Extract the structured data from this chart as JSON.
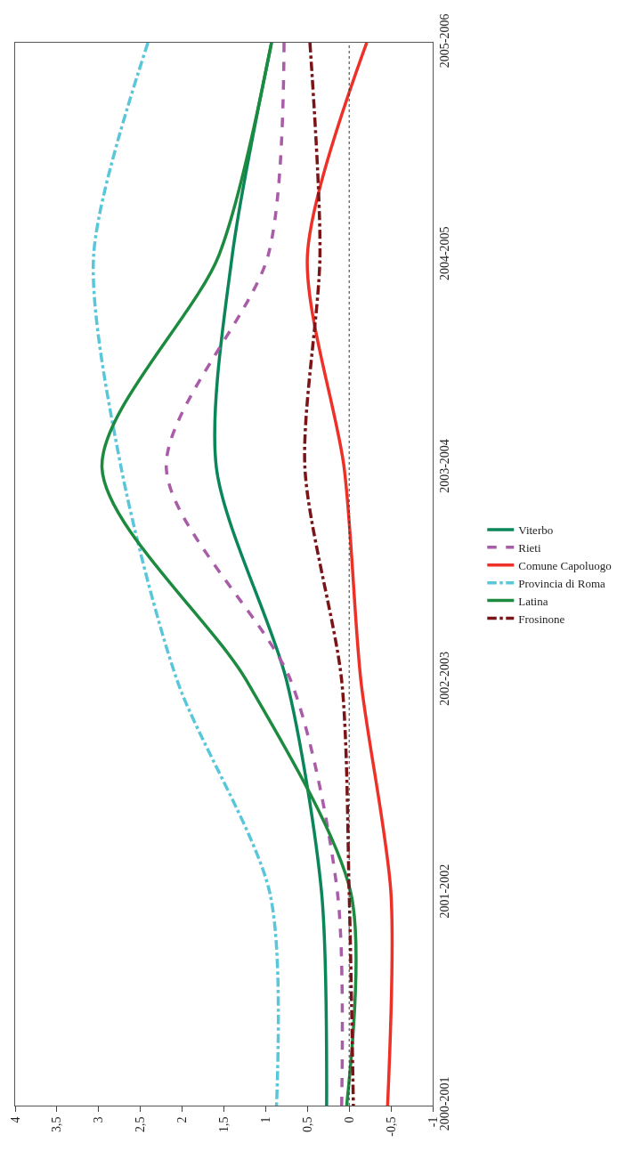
{
  "chart_data": {
    "type": "line",
    "orientation": "horizontal",
    "categories": [
      "2005-2006",
      "2004-2005",
      "2003-2004",
      "2002-2003",
      "2001-2002",
      "2000-2001"
    ],
    "series": [
      {
        "name": "Viterbo",
        "color": "#0b8659",
        "line_style": "solid",
        "values": [
          0.93,
          1.4,
          1.59,
          0.75,
          0.33,
          0.27
        ]
      },
      {
        "name": "Rieti",
        "color": "#a95ca8",
        "line_style": "dashed",
        "values": [
          0.78,
          0.97,
          2.19,
          0.7,
          0.14,
          0.09
        ]
      },
      {
        "name": "Comune Capoluogo",
        "color": "#ee3128",
        "line_style": "solid",
        "values": [
          -0.21,
          0.5,
          0.06,
          -0.14,
          -0.5,
          -0.46
        ]
      },
      {
        "name": "Provincia di Roma",
        "color": "#59c7da",
        "line_style": "dashdot",
        "values": [
          2.41,
          3.06,
          2.73,
          2.06,
          0.95,
          0.87
        ]
      },
      {
        "name": "Latina",
        "color": "#1d8b3f",
        "line_style": "solid",
        "values": [
          0.93,
          1.56,
          2.96,
          1.23,
          -0.02,
          0.03
        ]
      },
      {
        "name": "Frosinone",
        "color": "#7b1416",
        "line_style": "dashdot",
        "values": [
          0.47,
          0.35,
          0.53,
          0.09,
          0.0,
          -0.05
        ]
      }
    ],
    "xlim": [
      4,
      -1
    ],
    "xticks": [
      {
        "value": 4,
        "label": "4"
      },
      {
        "value": 3.5,
        "label": "3,5"
      },
      {
        "value": 3,
        "label": "3"
      },
      {
        "value": 2.5,
        "label": "2,5"
      },
      {
        "value": 2,
        "label": "2"
      },
      {
        "value": 1.5,
        "label": "1,5"
      },
      {
        "value": 1,
        "label": "1"
      },
      {
        "value": 0.5,
        "label": "0,5"
      },
      {
        "value": 0,
        "label": "0"
      },
      {
        "value": -0.5,
        "label": "-0,5"
      },
      {
        "value": -1,
        "label": "-1"
      }
    ],
    "ref_lines": [
      {
        "axis": "x",
        "value": 0,
        "color": "#333333",
        "line_style": "dotted"
      }
    ],
    "legend": "right"
  }
}
